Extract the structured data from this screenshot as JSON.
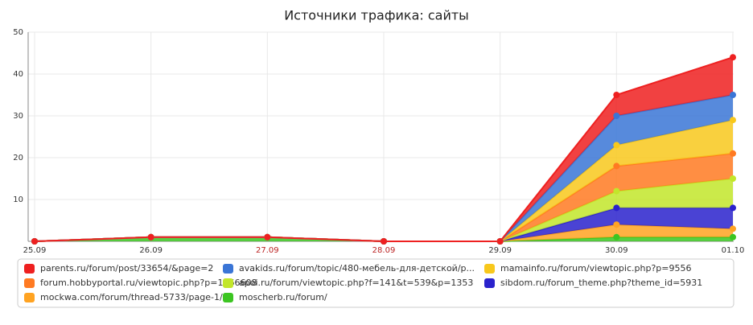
{
  "chart_data": {
    "type": "stacked_area",
    "title": "Источники трафика: сайты",
    "categories": [
      "25.09",
      "26.09",
      "27.09",
      "28.09",
      "29.09",
      "30.09",
      "01.10"
    ],
    "category_colors": [
      "#333333",
      "#333333",
      "#bb2222",
      "#bb2222",
      "#333333",
      "#333333",
      "#333333"
    ],
    "ylim": [
      0,
      50
    ],
    "yticks": [
      10,
      20,
      30,
      40,
      50
    ],
    "grid": true,
    "series": [
      {
        "name": "parents.ru/forum/post/33654/&page=2",
        "color": "#ee2020",
        "values": [
          0,
          0,
          0,
          0,
          0,
          5,
          9
        ]
      },
      {
        "name": "avakids.ru/forum/topic/480-мебель-для-детской/р...",
        "color": "#3a75d6",
        "values": [
          0,
          0,
          0,
          0,
          0,
          7,
          6
        ]
      },
      {
        "name": "mamainfo.ru/forum/viewtopic.php?p=9556",
        "color": "#f8c81c",
        "values": [
          0,
          0,
          0,
          0,
          0,
          5,
          8
        ]
      },
      {
        "name": "forum.hobbyportal.ru/viewtopic.php?p=1166608",
        "color": "#ff7a22",
        "values": [
          0,
          0,
          0,
          0,
          0,
          6,
          6
        ]
      },
      {
        "name": "apoi.ru/forum/viewtopic.php?f=141&t=539&p=1353",
        "color": "#c2e62a",
        "values": [
          0,
          0,
          0,
          0,
          0,
          4,
          7
        ]
      },
      {
        "name": "sibdom.ru/forum_theme.php?theme_id=5931",
        "color": "#2a22cc",
        "values": [
          0,
          0,
          0,
          0,
          0,
          4,
          5
        ]
      },
      {
        "name": "mockwa.com/forum/thread-5733/page-1/",
        "color": "#ffa322",
        "values": [
          0,
          0,
          0,
          0,
          0,
          3,
          2
        ]
      },
      {
        "name": "moscherb.ru/forum/",
        "color": "#3cc522",
        "values": [
          0,
          1,
          1,
          0,
          0,
          1,
          1
        ]
      }
    ]
  }
}
